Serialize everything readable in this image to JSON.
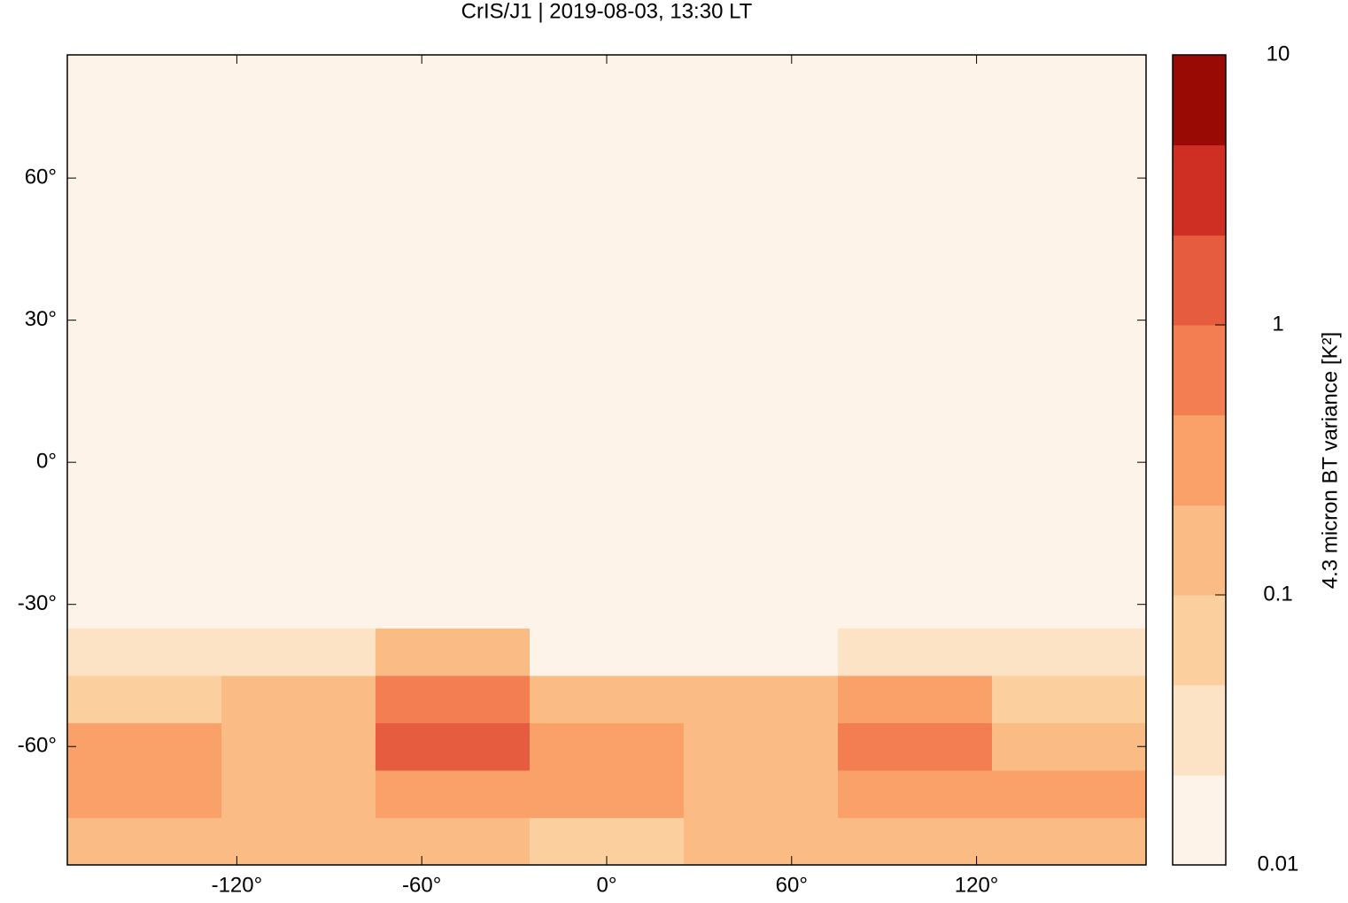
{
  "chart_data": {
    "type": "heatmap",
    "title": "CrIS/J1 | 2019-08-03, 13:30 LT",
    "xlim": [
      -175,
      175
    ],
    "ylim": [
      -85,
      86
    ],
    "xticks": [
      {
        "value": -120,
        "label": "-120°"
      },
      {
        "value": -60,
        "label": "-60°"
      },
      {
        "value": 0,
        "label": "0°"
      },
      {
        "value": 60,
        "label": "60°"
      },
      {
        "value": 120,
        "label": "120°"
      }
    ],
    "yticks": [
      {
        "value": 60,
        "label": "60°"
      },
      {
        "value": 30,
        "label": "30°"
      },
      {
        "value": 0,
        "label": "0°"
      },
      {
        "value": -30,
        "label": "-30°"
      },
      {
        "value": -60,
        "label": "-60°"
      }
    ],
    "grid": {
      "lon_edges": [
        -175,
        -125,
        -75,
        -25,
        25,
        75,
        125,
        175
      ],
      "lat_edges": [
        -85,
        -75,
        -65,
        -55,
        -45,
        -35,
        86
      ],
      "values": [
        [
          0.1,
          0.2,
          0.1,
          0.08,
          0.1,
          0.1,
          0.15
        ],
        [
          0.3,
          0.15,
          0.3,
          0.4,
          0.2,
          0.3,
          0.25
        ],
        [
          0.3,
          0.2,
          1,
          0.3,
          0.15,
          0.6,
          0.2
        ],
        [
          0.08,
          0.15,
          0.6,
          0.1,
          0.1,
          0.4,
          0.08
        ],
        [
          0.03,
          0.03,
          0.1,
          0.02,
          0.02,
          0.03,
          0.03
        ],
        [
          0.015,
          0.015,
          0.015,
          0.015,
          0.015,
          0.015,
          0.015
        ]
      ]
    },
    "colorbar": {
      "label": "4.3 micron BT variance [K²]",
      "log_scale": true,
      "lim": [
        0.01,
        10
      ],
      "ticks": [
        10,
        1,
        0.1,
        0.01
      ],
      "levels": [
        0.01,
        0.0215,
        0.0464,
        0.1,
        0.215,
        0.464,
        1,
        2.15,
        4.64,
        10
      ],
      "colors": [
        "#fef3e8",
        "#fde3c6",
        "#fccf9f",
        "#fbbb85",
        "#f9a168",
        "#f37e52",
        "#e65c3f",
        "#cf2e22",
        "#9a0a05"
      ]
    }
  }
}
